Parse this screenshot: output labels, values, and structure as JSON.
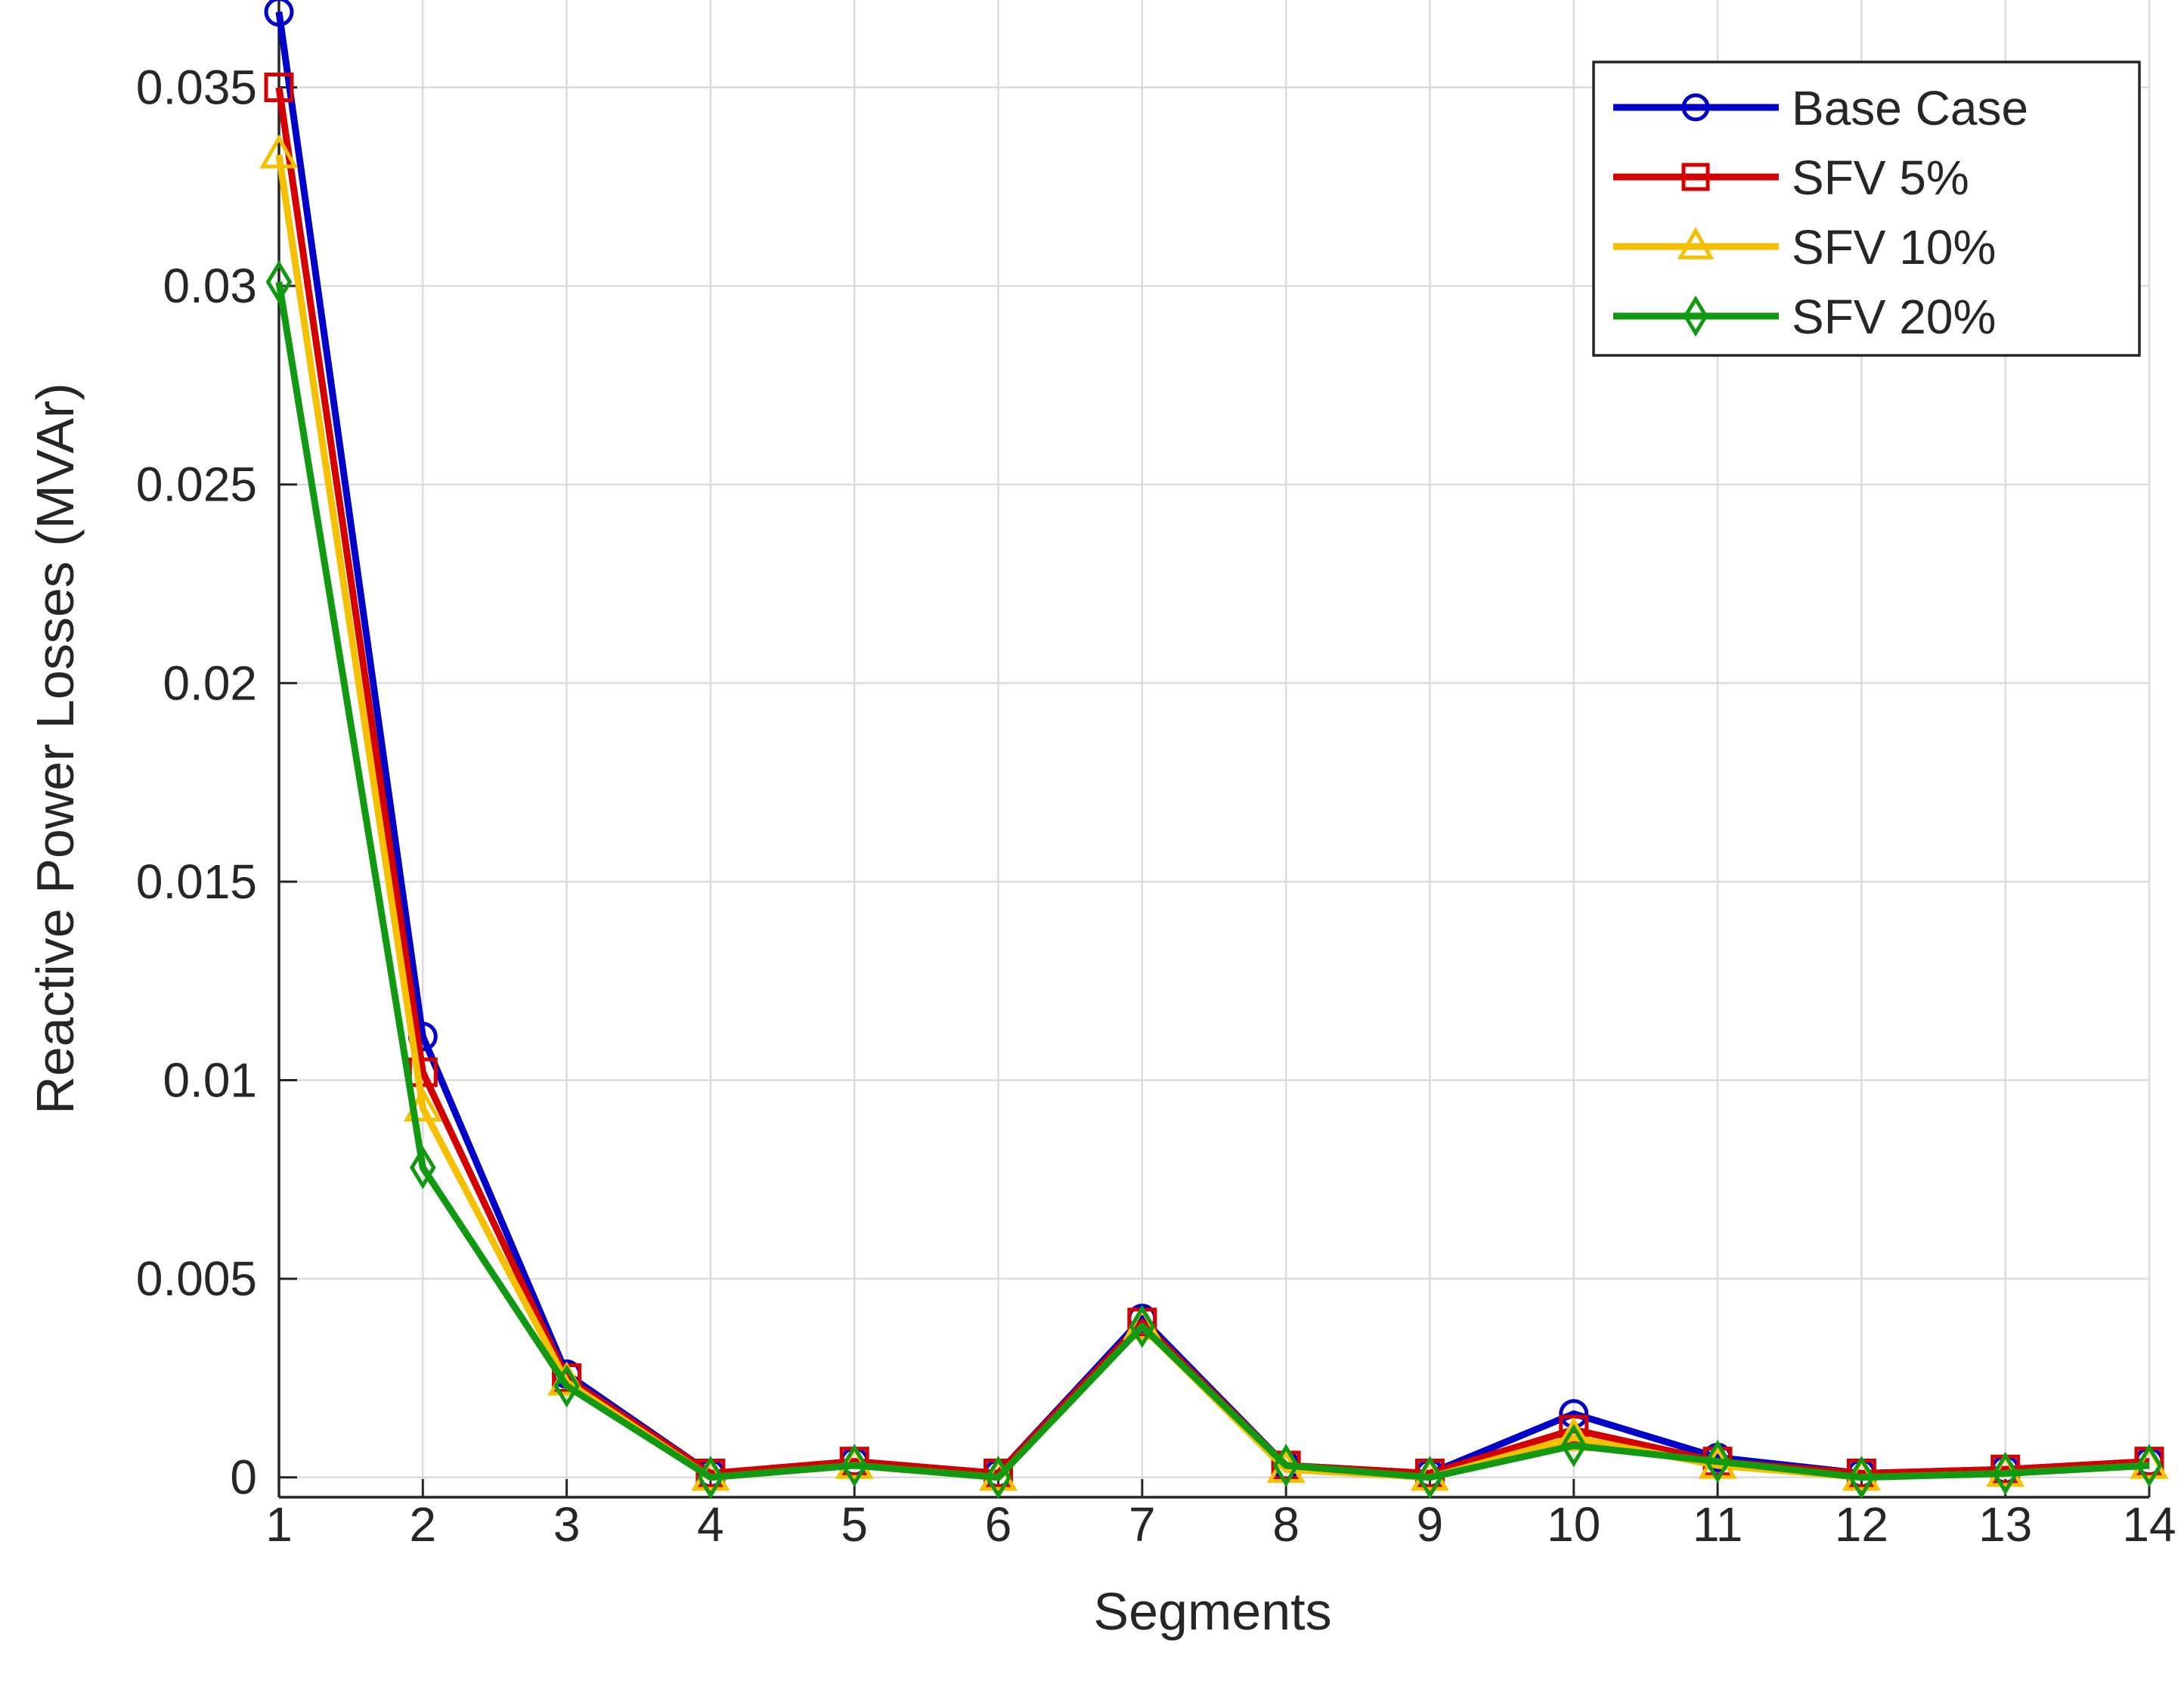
{
  "chart_data": {
    "type": "line",
    "title": "",
    "xlabel": "Segments",
    "ylabel": "Reactive Power Losses (MVAr)",
    "x": [
      1,
      2,
      3,
      4,
      5,
      6,
      7,
      8,
      9,
      10,
      11,
      12,
      13,
      14
    ],
    "xticks": [
      "1",
      "2",
      "3",
      "4",
      "5",
      "6",
      "7",
      "8",
      "9",
      "10",
      "11",
      "12",
      "13",
      "14"
    ],
    "xlim": [
      1,
      14
    ],
    "ylim": [
      -0.0005,
      0.0372
    ],
    "yticks": [
      0,
      0.005,
      0.01,
      0.015,
      0.02,
      0.025,
      0.03,
      0.035
    ],
    "yticklabels": [
      "0",
      "0.005",
      "0.01",
      "0.015",
      "0.02",
      "0.025",
      "0.03",
      "0.035"
    ],
    "grid": true,
    "legend_position": "top-right",
    "series": [
      {
        "name": "Base Case",
        "color": "#0000c8",
        "marker": "circle",
        "values": [
          0.0369,
          0.0111,
          0.0026,
          0.0001,
          0.0004,
          0.0001,
          0.004,
          0.0003,
          0.0001,
          0.0016,
          0.0005,
          0.0001,
          0.0002,
          0.0004
        ]
      },
      {
        "name": "SFV 5%",
        "color": "#d40000",
        "marker": "square",
        "values": [
          0.035,
          0.0102,
          0.0025,
          0.0001,
          0.0004,
          0.0001,
          0.0039,
          0.0003,
          0.0001,
          0.0012,
          0.0004,
          0.0001,
          0.0002,
          0.0004
        ]
      },
      {
        "name": "SFV 10%",
        "color": "#f5c000",
        "marker": "triangle",
        "values": [
          0.0333,
          0.0093,
          0.0024,
          0.0,
          0.0003,
          0.0,
          0.0038,
          0.0002,
          0.0,
          0.001,
          0.0003,
          0.0,
          0.0001,
          0.0003
        ]
      },
      {
        "name": "SFV 20%",
        "color": "#119911",
        "marker": "diamond",
        "values": [
          0.0301,
          0.0078,
          0.0023,
          0.0,
          0.0003,
          0.0,
          0.0038,
          0.0003,
          0.0,
          0.0008,
          0.0004,
          0.0,
          0.0001,
          0.0003
        ]
      }
    ]
  }
}
